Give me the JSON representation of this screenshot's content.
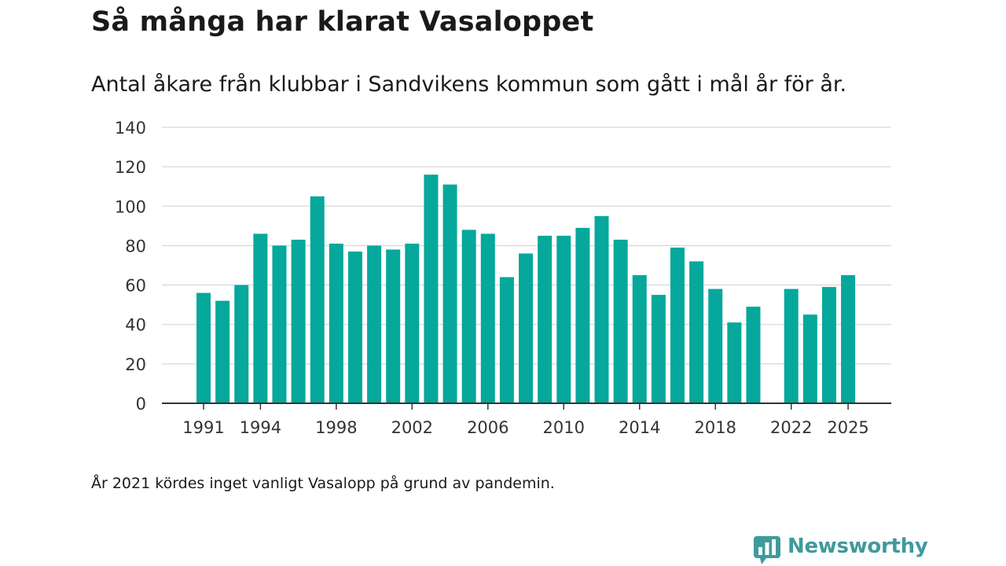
{
  "header": {
    "title": "Så många har klarat Vasaloppet",
    "subtitle": "Antal åkare från klubbar i Sandvikens kommun som gått i mål år för år."
  },
  "footer": {
    "note": "År 2021 kördes inget vanligt Vasalopp på grund av pandemin.",
    "brand": "Newsworthy"
  },
  "colors": {
    "bar": "#05a89b",
    "grid": "#d9d9d9",
    "axis": "#333333",
    "brand": "#3f9a9c"
  },
  "chart_data": {
    "type": "bar",
    "title": "Så många har klarat Vasaloppet",
    "subtitle": "Antal åkare från klubbar i Sandvikens kommun som gått i mål år för år.",
    "xlabel": "",
    "ylabel": "",
    "ylim": [
      0,
      140
    ],
    "yticks": [
      0,
      20,
      40,
      60,
      80,
      100,
      120,
      140
    ],
    "xticks": [
      1991,
      1994,
      1998,
      2002,
      2006,
      2010,
      2014,
      2018,
      2022,
      2025
    ],
    "grid": true,
    "categories": [
      1991,
      1992,
      1993,
      1994,
      1995,
      1996,
      1997,
      1998,
      1999,
      2000,
      2001,
      2002,
      2003,
      2004,
      2005,
      2006,
      2007,
      2008,
      2009,
      2010,
      2011,
      2012,
      2013,
      2014,
      2015,
      2016,
      2017,
      2018,
      2019,
      2020,
      2021,
      2022,
      2023,
      2024,
      2025
    ],
    "values": [
      56,
      52,
      60,
      86,
      80,
      83,
      105,
      81,
      77,
      80,
      78,
      81,
      116,
      111,
      88,
      86,
      64,
      76,
      85,
      85,
      89,
      95,
      83,
      65,
      55,
      79,
      72,
      58,
      41,
      49,
      null,
      58,
      45,
      59,
      65
    ]
  }
}
